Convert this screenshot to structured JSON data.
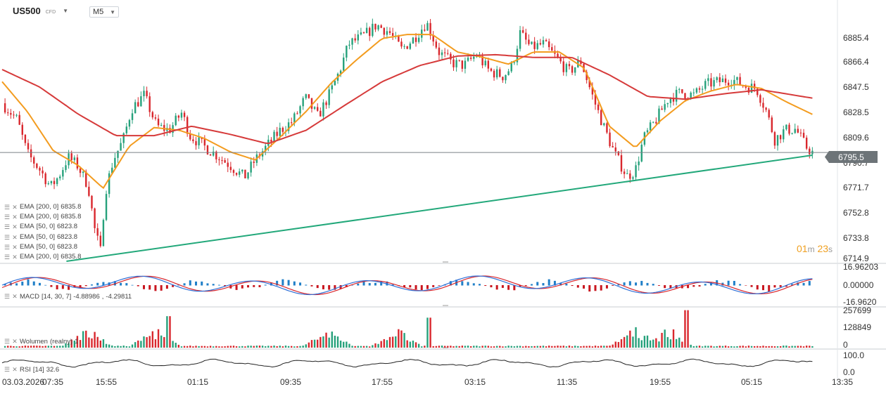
{
  "header": {
    "symbol": "US500",
    "instrument_type": "CFD",
    "timeframe": "M5",
    "caret_icon": "caret-down-icon"
  },
  "price_axis": {
    "ticks": [
      "6885.4",
      "6866.4",
      "6847.5",
      "6828.5",
      "6809.6",
      "6790.7",
      "6771.7",
      "6752.8",
      "6733.8",
      "6714.9"
    ],
    "last_price": "6795.5"
  },
  "countdown": {
    "minutes": "01",
    "minutes_unit": "m",
    "seconds": "23",
    "seconds_unit": "s"
  },
  "indicators": [
    {
      "name": "EMA",
      "params": "[200, 0]",
      "value": "6835.8"
    },
    {
      "name": "EMA",
      "params": "[200, 0]",
      "value": "6835.8"
    },
    {
      "name": "EMA",
      "params": "[50, 0]",
      "value": "6823.8"
    },
    {
      "name": "EMA",
      "params": "[50, 0]",
      "value": "6823.8"
    },
    {
      "name": "EMA",
      "params": "[50, 0]",
      "value": "6823.8"
    },
    {
      "name": "EMA",
      "params": "[200, 0]",
      "value": "6835.8"
    }
  ],
  "macd": {
    "label": "MACD",
    "params": "[14, 30, 7]",
    "value1": "-4.88986",
    "value2": "-4.29811",
    "ticks": [
      "16.96203",
      "0.00000",
      "-16.9620"
    ]
  },
  "volume": {
    "label": "Wolumen",
    "params": "(realny)",
    "value": "1",
    "ticks": [
      "257699",
      "128849",
      "0"
    ]
  },
  "rsi": {
    "label": "RSI",
    "params": "[14]",
    "value": "32.6",
    "ticks": [
      "100.0",
      "0.0"
    ]
  },
  "time_axis": {
    "labels": [
      "03.03.2026",
      "07:35",
      "15:55",
      "01:15",
      "09:35",
      "17:55",
      "03:15",
      "11:35",
      "19:55",
      "05:15",
      "13:35"
    ]
  },
  "colors": {
    "bull": "#26a17b",
    "bear": "#d9272d",
    "ema50": "#f39c1f",
    "ema200": "#d63a3a",
    "trendline": "#22a87a",
    "macd_line": "#2f6fd6",
    "signal_line": "#d9272d",
    "hist_pos": "#1f7fc8",
    "hist_neg": "#c9161f",
    "rsi_line": "#222222"
  },
  "chart_data": {
    "type": "candlestick",
    "timeframe": "M5",
    "ylim": [
      6714.9,
      6895
    ],
    "last_price": 6795.5,
    "close_path": [
      {
        "t": 0.0,
        "v": 6832
      },
      {
        "t": 0.018,
        "v": 6820
      },
      {
        "t": 0.03,
        "v": 6795
      },
      {
        "t": 0.046,
        "v": 6782
      },
      {
        "t": 0.058,
        "v": 6770
      },
      {
        "t": 0.068,
        "v": 6778
      },
      {
        "t": 0.079,
        "v": 6792
      },
      {
        "t": 0.09,
        "v": 6786
      },
      {
        "t": 0.103,
        "v": 6771
      },
      {
        "t": 0.111,
        "v": 6738
      },
      {
        "t": 0.118,
        "v": 6722
      },
      {
        "t": 0.123,
        "v": 6765
      },
      {
        "t": 0.133,
        "v": 6790
      },
      {
        "t": 0.145,
        "v": 6805
      },
      {
        "t": 0.155,
        "v": 6828
      },
      {
        "t": 0.17,
        "v": 6838
      },
      {
        "t": 0.185,
        "v": 6815
      },
      {
        "t": 0.2,
        "v": 6812
      },
      {
        "t": 0.215,
        "v": 6825
      },
      {
        "t": 0.225,
        "v": 6808
      },
      {
        "t": 0.242,
        "v": 6800
      },
      {
        "t": 0.258,
        "v": 6793
      },
      {
        "t": 0.273,
        "v": 6786
      },
      {
        "t": 0.29,
        "v": 6777
      },
      {
        "t": 0.303,
        "v": 6790
      },
      {
        "t": 0.318,
        "v": 6801
      },
      {
        "t": 0.333,
        "v": 6812
      },
      {
        "t": 0.348,
        "v": 6819
      },
      {
        "t": 0.363,
        "v": 6836
      },
      {
        "t": 0.378,
        "v": 6822
      },
      {
        "t": 0.393,
        "v": 6840
      },
      {
        "t": 0.404,
        "v": 6856
      },
      {
        "t": 0.415,
        "v": 6876
      },
      {
        "t": 0.433,
        "v": 6882
      },
      {
        "t": 0.448,
        "v": 6890
      },
      {
        "t": 0.463,
        "v": 6885
      },
      {
        "t": 0.478,
        "v": 6872
      },
      {
        "t": 0.493,
        "v": 6880
      },
      {
        "t": 0.508,
        "v": 6892
      },
      {
        "t": 0.523,
        "v": 6870
      },
      {
        "t": 0.538,
        "v": 6862
      },
      {
        "t": 0.553,
        "v": 6860
      },
      {
        "t": 0.568,
        "v": 6868
      },
      {
        "t": 0.583,
        "v": 6856
      },
      {
        "t": 0.6,
        "v": 6852
      },
      {
        "t": 0.611,
        "v": 6860
      },
      {
        "t": 0.62,
        "v": 6884
      },
      {
        "t": 0.633,
        "v": 6873
      },
      {
        "t": 0.648,
        "v": 6876
      },
      {
        "t": 0.663,
        "v": 6866
      },
      {
        "t": 0.678,
        "v": 6855
      },
      {
        "t": 0.693,
        "v": 6863
      },
      {
        "t": 0.708,
        "v": 6835
      },
      {
        "t": 0.72,
        "v": 6815
      },
      {
        "t": 0.733,
        "v": 6795
      },
      {
        "t": 0.748,
        "v": 6778
      },
      {
        "t": 0.758,
        "v": 6782
      },
      {
        "t": 0.768,
        "v": 6806
      },
      {
        "t": 0.783,
        "v": 6820
      },
      {
        "t": 0.798,
        "v": 6836
      },
      {
        "t": 0.813,
        "v": 6840
      },
      {
        "t": 0.828,
        "v": 6838
      },
      {
        "t": 0.843,
        "v": 6846
      },
      {
        "t": 0.858,
        "v": 6848
      },
      {
        "t": 0.873,
        "v": 6850
      },
      {
        "t": 0.888,
        "v": 6845
      },
      {
        "t": 0.903,
        "v": 6843
      },
      {
        "t": 0.915,
        "v": 6826
      },
      {
        "t": 0.925,
        "v": 6805
      },
      {
        "t": 0.937,
        "v": 6812
      },
      {
        "t": 0.95,
        "v": 6813
      },
      {
        "t": 0.962,
        "v": 6800
      },
      {
        "t": 0.97,
        "v": 6795.5
      }
    ],
    "series": [
      {
        "name": "EMA [50, 0]",
        "type": "line",
        "points": [
          {
            "t": 0.0,
            "v": 6848
          },
          {
            "t": 0.03,
            "v": 6826
          },
          {
            "t": 0.061,
            "v": 6797
          },
          {
            "t": 0.091,
            "v": 6786
          },
          {
            "t": 0.121,
            "v": 6769
          },
          {
            "t": 0.152,
            "v": 6800
          },
          {
            "t": 0.182,
            "v": 6814
          },
          {
            "t": 0.212,
            "v": 6812
          },
          {
            "t": 0.242,
            "v": 6806
          },
          {
            "t": 0.273,
            "v": 6796
          },
          {
            "t": 0.303,
            "v": 6790
          },
          {
            "t": 0.333,
            "v": 6807
          },
          {
            "t": 0.364,
            "v": 6826
          },
          {
            "t": 0.394,
            "v": 6847
          },
          {
            "t": 0.424,
            "v": 6864
          },
          {
            "t": 0.455,
            "v": 6880
          },
          {
            "t": 0.485,
            "v": 6883
          },
          {
            "t": 0.515,
            "v": 6883
          },
          {
            "t": 0.545,
            "v": 6870
          },
          {
            "t": 0.576,
            "v": 6866
          },
          {
            "t": 0.606,
            "v": 6861
          },
          {
            "t": 0.636,
            "v": 6870
          },
          {
            "t": 0.667,
            "v": 6870
          },
          {
            "t": 0.697,
            "v": 6858
          },
          {
            "t": 0.727,
            "v": 6815
          },
          {
            "t": 0.758,
            "v": 6799
          },
          {
            "t": 0.788,
            "v": 6819
          },
          {
            "t": 0.818,
            "v": 6834
          },
          {
            "t": 0.848,
            "v": 6841
          },
          {
            "t": 0.879,
            "v": 6846
          },
          {
            "t": 0.909,
            "v": 6843
          },
          {
            "t": 0.939,
            "v": 6833
          },
          {
            "t": 0.97,
            "v": 6823.8
          }
        ]
      },
      {
        "name": "EMA [200, 0]",
        "type": "line",
        "points": [
          {
            "t": 0.0,
            "v": 6857
          },
          {
            "t": 0.045,
            "v": 6844
          },
          {
            "t": 0.091,
            "v": 6824
          },
          {
            "t": 0.136,
            "v": 6808
          },
          {
            "t": 0.182,
            "v": 6808
          },
          {
            "t": 0.227,
            "v": 6815
          },
          {
            "t": 0.273,
            "v": 6809
          },
          {
            "t": 0.318,
            "v": 6802
          },
          {
            "t": 0.364,
            "v": 6812
          },
          {
            "t": 0.409,
            "v": 6830
          },
          {
            "t": 0.455,
            "v": 6848
          },
          {
            "t": 0.5,
            "v": 6860
          },
          {
            "t": 0.545,
            "v": 6867
          },
          {
            "t": 0.591,
            "v": 6868
          },
          {
            "t": 0.636,
            "v": 6866
          },
          {
            "t": 0.682,
            "v": 6866
          },
          {
            "t": 0.727,
            "v": 6853
          },
          {
            "t": 0.773,
            "v": 6837
          },
          {
            "t": 0.818,
            "v": 6835
          },
          {
            "t": 0.864,
            "v": 6839
          },
          {
            "t": 0.909,
            "v": 6842
          },
          {
            "t": 0.97,
            "v": 6835.8
          }
        ]
      },
      {
        "name": "trendline",
        "type": "line",
        "points": [
          {
            "t": 0.077,
            "v": 6714.9
          },
          {
            "t": 0.97,
            "v": 6793.5
          }
        ]
      }
    ],
    "panels": [
      {
        "name": "MACD [14, 30, 7]",
        "ylim": [
          -16.962,
          16.96203
        ]
      },
      {
        "name": "Wolumen (realny)",
        "ylim": [
          0,
          257699
        ],
        "spikes_at": [
          0.102,
          0.183,
          0.39,
          0.472,
          0.757,
          0.798
        ]
      },
      {
        "name": "RSI [14]",
        "ylim": [
          0,
          100
        ],
        "last": 32.6
      }
    ]
  }
}
